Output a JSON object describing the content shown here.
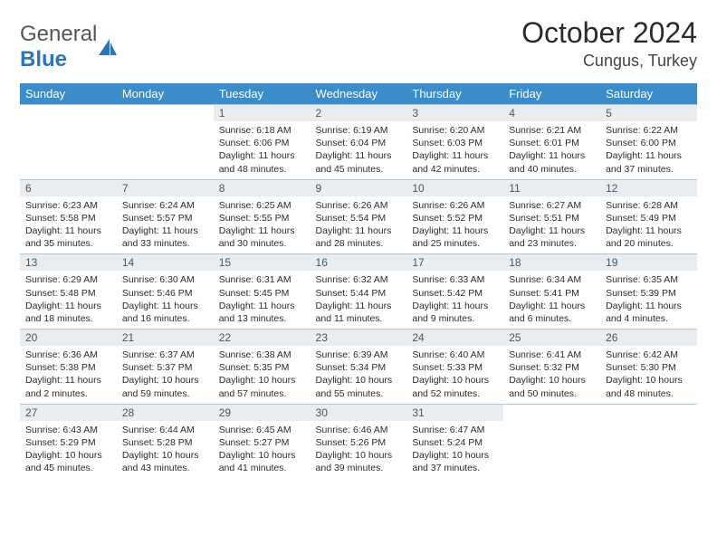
{
  "logo": {
    "general": "General",
    "blue": "Blue"
  },
  "title": "October 2024",
  "location": "Cungus, Turkey",
  "colors": {
    "header_bg": "#3b8cc9",
    "header_text": "#ffffff",
    "daynum_bg": "#eaedf0",
    "daynum_text": "#4a5560",
    "border": "#b8c5d0",
    "body_text": "#2b2b2b",
    "logo_blue": "#2e75b6"
  },
  "weekdays": [
    "Sunday",
    "Monday",
    "Tuesday",
    "Wednesday",
    "Thursday",
    "Friday",
    "Saturday"
  ],
  "weeks": [
    [
      null,
      null,
      {
        "n": "1",
        "sr": "Sunrise: 6:18 AM",
        "ss": "Sunset: 6:06 PM",
        "d1": "Daylight: 11 hours",
        "d2": "and 48 minutes."
      },
      {
        "n": "2",
        "sr": "Sunrise: 6:19 AM",
        "ss": "Sunset: 6:04 PM",
        "d1": "Daylight: 11 hours",
        "d2": "and 45 minutes."
      },
      {
        "n": "3",
        "sr": "Sunrise: 6:20 AM",
        "ss": "Sunset: 6:03 PM",
        "d1": "Daylight: 11 hours",
        "d2": "and 42 minutes."
      },
      {
        "n": "4",
        "sr": "Sunrise: 6:21 AM",
        "ss": "Sunset: 6:01 PM",
        "d1": "Daylight: 11 hours",
        "d2": "and 40 minutes."
      },
      {
        "n": "5",
        "sr": "Sunrise: 6:22 AM",
        "ss": "Sunset: 6:00 PM",
        "d1": "Daylight: 11 hours",
        "d2": "and 37 minutes."
      }
    ],
    [
      {
        "n": "6",
        "sr": "Sunrise: 6:23 AM",
        "ss": "Sunset: 5:58 PM",
        "d1": "Daylight: 11 hours",
        "d2": "and 35 minutes."
      },
      {
        "n": "7",
        "sr": "Sunrise: 6:24 AM",
        "ss": "Sunset: 5:57 PM",
        "d1": "Daylight: 11 hours",
        "d2": "and 33 minutes."
      },
      {
        "n": "8",
        "sr": "Sunrise: 6:25 AM",
        "ss": "Sunset: 5:55 PM",
        "d1": "Daylight: 11 hours",
        "d2": "and 30 minutes."
      },
      {
        "n": "9",
        "sr": "Sunrise: 6:26 AM",
        "ss": "Sunset: 5:54 PM",
        "d1": "Daylight: 11 hours",
        "d2": "and 28 minutes."
      },
      {
        "n": "10",
        "sr": "Sunrise: 6:26 AM",
        "ss": "Sunset: 5:52 PM",
        "d1": "Daylight: 11 hours",
        "d2": "and 25 minutes."
      },
      {
        "n": "11",
        "sr": "Sunrise: 6:27 AM",
        "ss": "Sunset: 5:51 PM",
        "d1": "Daylight: 11 hours",
        "d2": "and 23 minutes."
      },
      {
        "n": "12",
        "sr": "Sunrise: 6:28 AM",
        "ss": "Sunset: 5:49 PM",
        "d1": "Daylight: 11 hours",
        "d2": "and 20 minutes."
      }
    ],
    [
      {
        "n": "13",
        "sr": "Sunrise: 6:29 AM",
        "ss": "Sunset: 5:48 PM",
        "d1": "Daylight: 11 hours",
        "d2": "and 18 minutes."
      },
      {
        "n": "14",
        "sr": "Sunrise: 6:30 AM",
        "ss": "Sunset: 5:46 PM",
        "d1": "Daylight: 11 hours",
        "d2": "and 16 minutes."
      },
      {
        "n": "15",
        "sr": "Sunrise: 6:31 AM",
        "ss": "Sunset: 5:45 PM",
        "d1": "Daylight: 11 hours",
        "d2": "and 13 minutes."
      },
      {
        "n": "16",
        "sr": "Sunrise: 6:32 AM",
        "ss": "Sunset: 5:44 PM",
        "d1": "Daylight: 11 hours",
        "d2": "and 11 minutes."
      },
      {
        "n": "17",
        "sr": "Sunrise: 6:33 AM",
        "ss": "Sunset: 5:42 PM",
        "d1": "Daylight: 11 hours",
        "d2": "and 9 minutes."
      },
      {
        "n": "18",
        "sr": "Sunrise: 6:34 AM",
        "ss": "Sunset: 5:41 PM",
        "d1": "Daylight: 11 hours",
        "d2": "and 6 minutes."
      },
      {
        "n": "19",
        "sr": "Sunrise: 6:35 AM",
        "ss": "Sunset: 5:39 PM",
        "d1": "Daylight: 11 hours",
        "d2": "and 4 minutes."
      }
    ],
    [
      {
        "n": "20",
        "sr": "Sunrise: 6:36 AM",
        "ss": "Sunset: 5:38 PM",
        "d1": "Daylight: 11 hours",
        "d2": "and 2 minutes."
      },
      {
        "n": "21",
        "sr": "Sunrise: 6:37 AM",
        "ss": "Sunset: 5:37 PM",
        "d1": "Daylight: 10 hours",
        "d2": "and 59 minutes."
      },
      {
        "n": "22",
        "sr": "Sunrise: 6:38 AM",
        "ss": "Sunset: 5:35 PM",
        "d1": "Daylight: 10 hours",
        "d2": "and 57 minutes."
      },
      {
        "n": "23",
        "sr": "Sunrise: 6:39 AM",
        "ss": "Sunset: 5:34 PM",
        "d1": "Daylight: 10 hours",
        "d2": "and 55 minutes."
      },
      {
        "n": "24",
        "sr": "Sunrise: 6:40 AM",
        "ss": "Sunset: 5:33 PM",
        "d1": "Daylight: 10 hours",
        "d2": "and 52 minutes."
      },
      {
        "n": "25",
        "sr": "Sunrise: 6:41 AM",
        "ss": "Sunset: 5:32 PM",
        "d1": "Daylight: 10 hours",
        "d2": "and 50 minutes."
      },
      {
        "n": "26",
        "sr": "Sunrise: 6:42 AM",
        "ss": "Sunset: 5:30 PM",
        "d1": "Daylight: 10 hours",
        "d2": "and 48 minutes."
      }
    ],
    [
      {
        "n": "27",
        "sr": "Sunrise: 6:43 AM",
        "ss": "Sunset: 5:29 PM",
        "d1": "Daylight: 10 hours",
        "d2": "and 45 minutes."
      },
      {
        "n": "28",
        "sr": "Sunrise: 6:44 AM",
        "ss": "Sunset: 5:28 PM",
        "d1": "Daylight: 10 hours",
        "d2": "and 43 minutes."
      },
      {
        "n": "29",
        "sr": "Sunrise: 6:45 AM",
        "ss": "Sunset: 5:27 PM",
        "d1": "Daylight: 10 hours",
        "d2": "and 41 minutes."
      },
      {
        "n": "30",
        "sr": "Sunrise: 6:46 AM",
        "ss": "Sunset: 5:26 PM",
        "d1": "Daylight: 10 hours",
        "d2": "and 39 minutes."
      },
      {
        "n": "31",
        "sr": "Sunrise: 6:47 AM",
        "ss": "Sunset: 5:24 PM",
        "d1": "Daylight: 10 hours",
        "d2": "and 37 minutes."
      },
      null,
      null
    ]
  ]
}
